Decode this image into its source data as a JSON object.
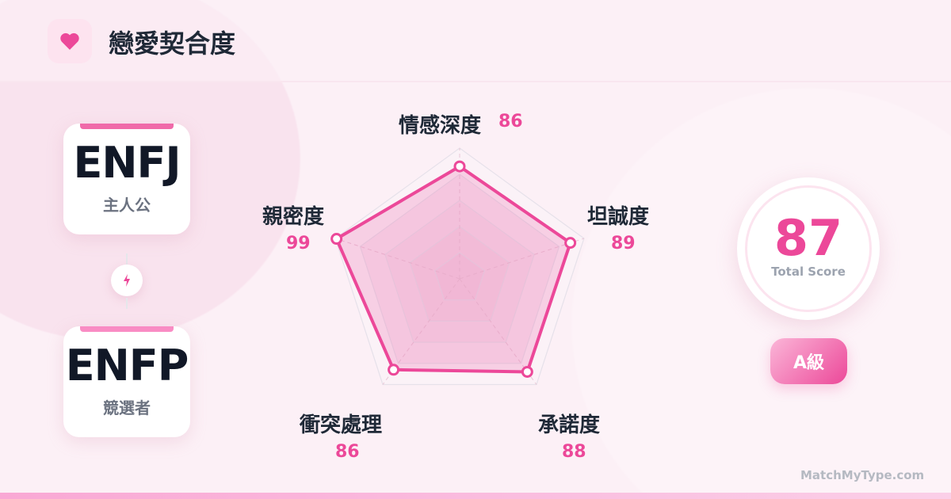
{
  "header": {
    "title": "戀愛契合度",
    "icon": "heart-icon"
  },
  "pair": [
    {
      "type": "ENFJ",
      "role": "主人公"
    },
    {
      "type": "ENFP",
      "role": "競選者"
    }
  ],
  "connector_icon": "lightning-icon",
  "chart_data": {
    "type": "radar",
    "categories": [
      "情感深度",
      "坦誠度",
      "承諾度",
      "衝突處理",
      "親密度"
    ],
    "values": [
      86,
      89,
      88,
      86,
      99
    ],
    "range": [
      0,
      100
    ],
    "grid_levels": [
      20,
      40,
      60,
      80,
      100
    ],
    "color": "#ec4899"
  },
  "score": {
    "value": "87",
    "caption": "Total Score",
    "grade": "A級"
  },
  "footer": "MatchMyType.com",
  "colors": {
    "accent": "#ec4899",
    "text": "#1f2937",
    "muted": "#6b7280"
  }
}
